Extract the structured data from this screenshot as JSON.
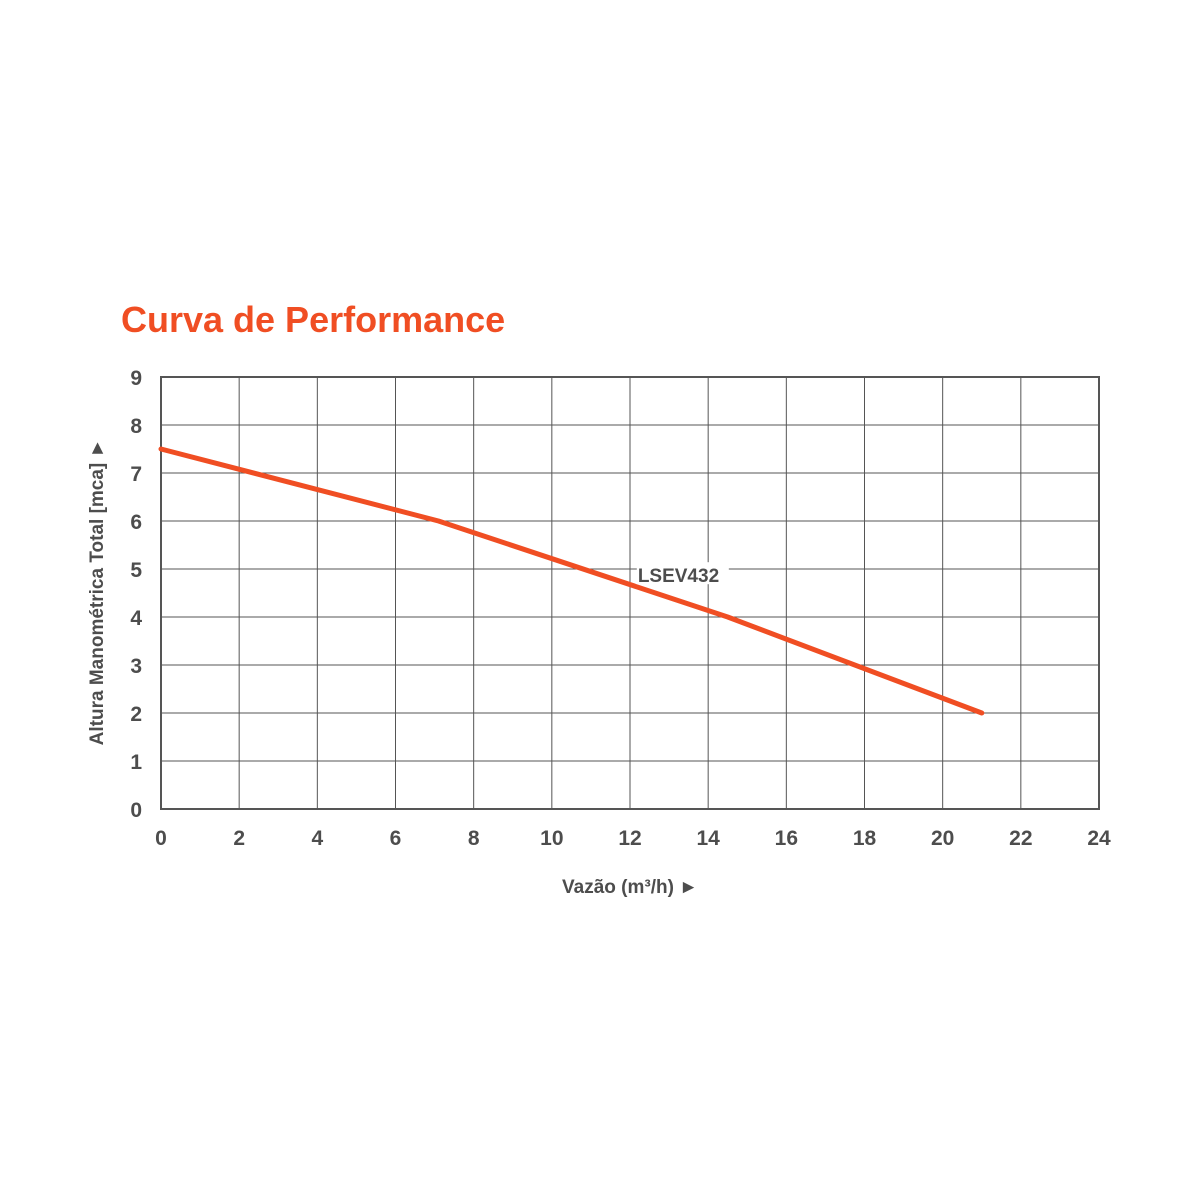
{
  "chart_data": {
    "type": "line",
    "title": "Curva de Performance",
    "xlabel": "Vazão (m³/h) ►",
    "ylabel": "Altura Manométrica Total [mca] ►",
    "xlim": [
      0,
      24
    ],
    "ylim": [
      0,
      9
    ],
    "x_ticks": [
      0,
      2,
      4,
      6,
      8,
      10,
      12,
      14,
      16,
      18,
      20,
      22,
      24
    ],
    "y_ticks": [
      0,
      1,
      2,
      3,
      4,
      5,
      6,
      7,
      8,
      9
    ],
    "grid": true,
    "series": [
      {
        "name": "LSEV432",
        "x": [
          0,
          7.1,
          14.5,
          21
        ],
        "y": [
          7.5,
          6.0,
          4.0,
          2.0
        ]
      }
    ]
  },
  "colors": {
    "title": "#f04e23",
    "line": "#f04e23",
    "text": "#4d4d4d",
    "grid": "#555555"
  }
}
